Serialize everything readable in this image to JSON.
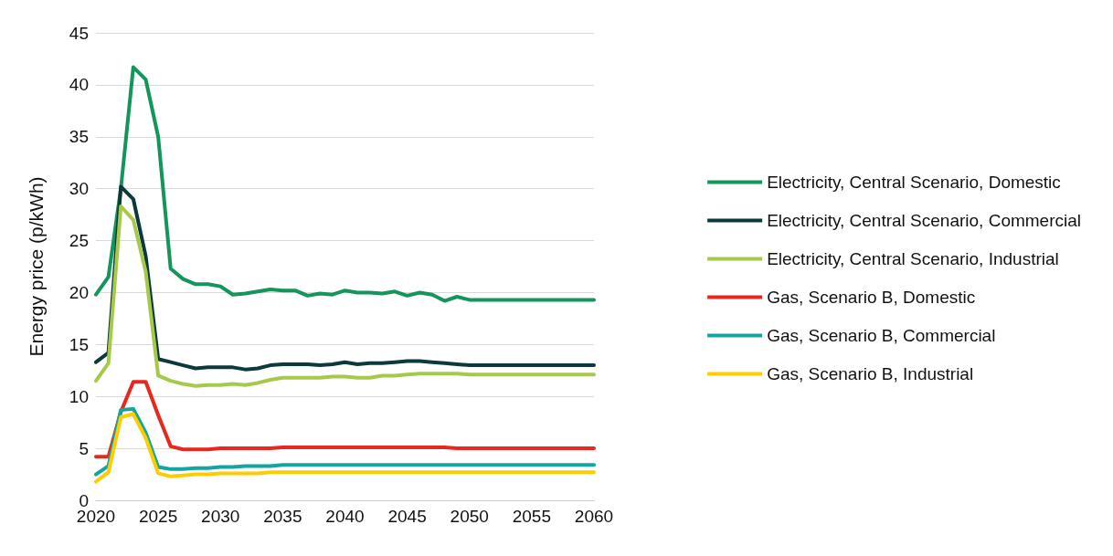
{
  "chart_data": {
    "type": "line",
    "ylabel": "Energy price (p/kWh)",
    "x": [
      2020,
      2021,
      2022,
      2023,
      2024,
      2025,
      2026,
      2027,
      2028,
      2029,
      2030,
      2031,
      2032,
      2033,
      2034,
      2035,
      2036,
      2037,
      2038,
      2039,
      2040,
      2041,
      2042,
      2043,
      2044,
      2045,
      2046,
      2047,
      2048,
      2049,
      2050,
      2051,
      2052,
      2053,
      2054,
      2055,
      2056,
      2057,
      2058,
      2059,
      2060
    ],
    "series": [
      {
        "name": "Electricity, Central Scenario, Domestic",
        "color": "#13955b",
        "values": [
          19.8,
          21.5,
          30,
          41.7,
          40.5,
          35,
          22.3,
          21.3,
          20.8,
          20.8,
          20.6,
          19.8,
          19.9,
          20.1,
          20.3,
          20.2,
          20.2,
          19.7,
          19.9,
          19.8,
          20.2,
          20,
          20,
          19.9,
          20.1,
          19.7,
          20,
          19.8,
          19.2,
          19.6,
          19.3,
          19.3,
          19.3,
          19.3,
          19.3,
          19.3,
          19.3,
          19.3,
          19.3,
          19.3,
          19.3
        ]
      },
      {
        "name": "Electricity, Central Scenario, Commercial",
        "color": "#0c3a3a",
        "values": [
          13.3,
          14.2,
          30.2,
          29,
          23.5,
          13.6,
          13.3,
          13,
          12.7,
          12.8,
          12.8,
          12.8,
          12.6,
          12.7,
          13,
          13.1,
          13.1,
          13.1,
          13,
          13.1,
          13.3,
          13.1,
          13.2,
          13.2,
          13.3,
          13.4,
          13.4,
          13.3,
          13.2,
          13.1,
          13,
          13,
          13,
          13,
          13,
          13,
          13,
          13,
          13,
          13,
          13
        ]
      },
      {
        "name": "Electricity, Central Scenario, Industrial",
        "color": "#a6c94a",
        "values": [
          11.5,
          13.2,
          28.3,
          27,
          22,
          12,
          11.5,
          11.2,
          11,
          11.1,
          11.1,
          11.2,
          11.1,
          11.3,
          11.6,
          11.8,
          11.8,
          11.8,
          11.8,
          11.9,
          11.9,
          11.8,
          11.8,
          12,
          12,
          12.1,
          12.2,
          12.2,
          12.2,
          12.2,
          12.1,
          12.1,
          12.1,
          12.1,
          12.1,
          12.1,
          12.1,
          12.1,
          12.1,
          12.1,
          12.1
        ]
      },
      {
        "name": "Gas, Scenario B, Domestic",
        "color": "#e8281e",
        "values": [
          4.2,
          4.2,
          8.5,
          11.4,
          11.4,
          8.2,
          5.2,
          4.9,
          4.9,
          4.9,
          5,
          5,
          5,
          5,
          5,
          5.1,
          5.1,
          5.1,
          5.1,
          5.1,
          5.1,
          5.1,
          5.1,
          5.1,
          5.1,
          5.1,
          5.1,
          5.1,
          5.1,
          5,
          5,
          5,
          5,
          5,
          5,
          5,
          5,
          5,
          5,
          5,
          5
        ]
      },
      {
        "name": "Gas, Scenario B, Commercial",
        "color": "#13a4a4",
        "values": [
          2.5,
          3.3,
          8.7,
          8.8,
          6.5,
          3.2,
          3,
          3,
          3.1,
          3.1,
          3.2,
          3.2,
          3.3,
          3.3,
          3.3,
          3.4,
          3.4,
          3.4,
          3.4,
          3.4,
          3.4,
          3.4,
          3.4,
          3.4,
          3.4,
          3.4,
          3.4,
          3.4,
          3.4,
          3.4,
          3.4,
          3.4,
          3.4,
          3.4,
          3.4,
          3.4,
          3.4,
          3.4,
          3.4,
          3.4,
          3.4
        ]
      },
      {
        "name": "Gas, Scenario B, Industrial",
        "color": "#ffcc00",
        "values": [
          1.8,
          2.7,
          8,
          8.3,
          6,
          2.6,
          2.3,
          2.4,
          2.5,
          2.5,
          2.6,
          2.6,
          2.6,
          2.6,
          2.7,
          2.7,
          2.7,
          2.7,
          2.7,
          2.7,
          2.7,
          2.7,
          2.7,
          2.7,
          2.7,
          2.7,
          2.7,
          2.7,
          2.7,
          2.7,
          2.7,
          2.7,
          2.7,
          2.7,
          2.7,
          2.7,
          2.7,
          2.7,
          2.7,
          2.7,
          2.7
        ]
      }
    ],
    "xlim": [
      2020,
      2060
    ],
    "xticks": [
      2020,
      2025,
      2030,
      2035,
      2040,
      2045,
      2050,
      2055,
      2060
    ],
    "ylim": [
      0,
      45
    ],
    "yticks": [
      0,
      5,
      10,
      15,
      20,
      25,
      30,
      35,
      40,
      45
    ],
    "grid": "y",
    "legend": "right",
    "marker": "none",
    "line_style": "solid"
  }
}
